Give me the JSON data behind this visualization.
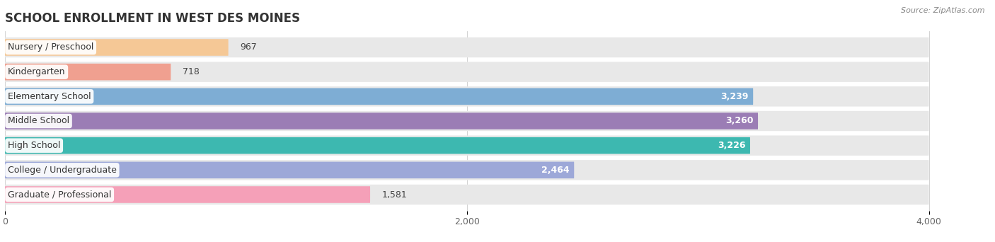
{
  "title": "SCHOOL ENROLLMENT IN WEST DES MOINES",
  "source": "Source: ZipAtlas.com",
  "categories": [
    "Nursery / Preschool",
    "Kindergarten",
    "Elementary School",
    "Middle School",
    "High School",
    "College / Undergraduate",
    "Graduate / Professional"
  ],
  "values": [
    967,
    718,
    3239,
    3260,
    3226,
    2464,
    1581
  ],
  "bar_colors": [
    "#f5c896",
    "#f0a090",
    "#7eadd4",
    "#9b7db5",
    "#3db8b0",
    "#9da8d8",
    "#f5a0b8"
  ],
  "value_inside": [
    false,
    false,
    true,
    true,
    true,
    true,
    false
  ],
  "xlim": [
    0,
    4200
  ],
  "xtick_vals": [
    0,
    2000,
    4000
  ],
  "xtick_labels": [
    "0",
    "2,000",
    "4,000"
  ],
  "title_fontsize": 12,
  "label_fontsize": 9,
  "value_fontsize": 9,
  "background_color": "#ffffff",
  "bg_bar_color": "#e8e8e8",
  "row_bg_color": "#f5f5f5"
}
